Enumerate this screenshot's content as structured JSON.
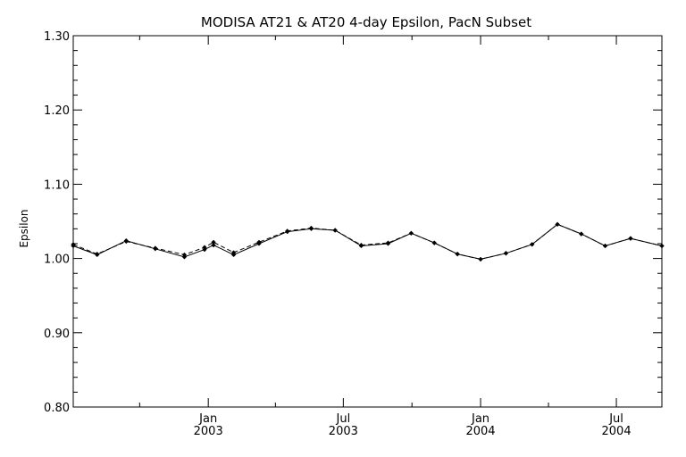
{
  "chart_data": {
    "type": "line",
    "title": "MODISA AT21 & AT20 4-day Epsilon, PacN Subset",
    "xlabel": "",
    "ylabel": "Epsilon",
    "ylim": [
      0.8,
      1.3
    ],
    "y_ticks": [
      "0.80",
      "0.90",
      "1.00",
      "1.10",
      "1.20",
      "1.30"
    ],
    "x_ticks": [
      {
        "line1": "Jan",
        "line2": "2003",
        "date": "2003-01-01"
      },
      {
        "line1": "Jul",
        "line2": "2003",
        "date": "2003-07-01"
      },
      {
        "line1": "Jan",
        "line2": "2004",
        "date": "2004-01-01"
      },
      {
        "line1": "Jul",
        "line2": "2004",
        "date": "2004-07-01"
      }
    ],
    "xlim": [
      "2002-07-04",
      "2004-08-31"
    ],
    "grid": false,
    "legend": "none",
    "series": [
      {
        "style": "solid",
        "marker": "diamond",
        "color": "#000000",
        "x": [
          "2002-07-04",
          "2002-08-05",
          "2002-09-13",
          "2002-10-22",
          "2002-11-30",
          "2002-12-27",
          "2003-01-08",
          "2003-02-04",
          "2003-03-10",
          "2003-04-17",
          "2003-05-19",
          "2003-06-20",
          "2003-07-25",
          "2003-08-30",
          "2003-09-30",
          "2003-10-31",
          "2003-12-01",
          "2004-01-01",
          "2004-02-04",
          "2004-03-10",
          "2004-04-13",
          "2004-05-15",
          "2004-06-16",
          "2004-07-20",
          "2004-08-31"
        ],
        "y": [
          1.017,
          1.005,
          1.024,
          1.013,
          1.002,
          1.012,
          1.018,
          1.005,
          1.02,
          1.036,
          1.04,
          1.038,
          1.017,
          1.02,
          1.034,
          1.021,
          1.006,
          0.999,
          1.007,
          1.019,
          1.046,
          1.033,
          1.017,
          1.027,
          1.017
        ]
      },
      {
        "style": "dashed",
        "marker": "diamond",
        "color": "#000000",
        "x": [
          "2002-07-04",
          "2002-08-05",
          "2002-09-13",
          "2002-10-22",
          "2002-11-30",
          "2002-12-27",
          "2003-01-08",
          "2003-02-04",
          "2003-03-10",
          "2003-04-17",
          "2003-05-19",
          "2003-06-20",
          "2003-07-25",
          "2003-08-30",
          "2003-09-30",
          "2003-10-31",
          "2003-12-01",
          "2004-01-01",
          "2004-02-04",
          "2004-03-10",
          "2004-04-13",
          "2004-05-15",
          "2004-06-16",
          "2004-07-20",
          "2004-08-31"
        ],
        "y": [
          1.019,
          1.006,
          1.023,
          1.014,
          1.005,
          1.015,
          1.022,
          1.008,
          1.022,
          1.037,
          1.041,
          1.038,
          1.018,
          1.021,
          1.034,
          1.021,
          1.006,
          0.999,
          1.007,
          1.019,
          1.046,
          1.033,
          1.017,
          1.027,
          1.017
        ]
      }
    ]
  }
}
